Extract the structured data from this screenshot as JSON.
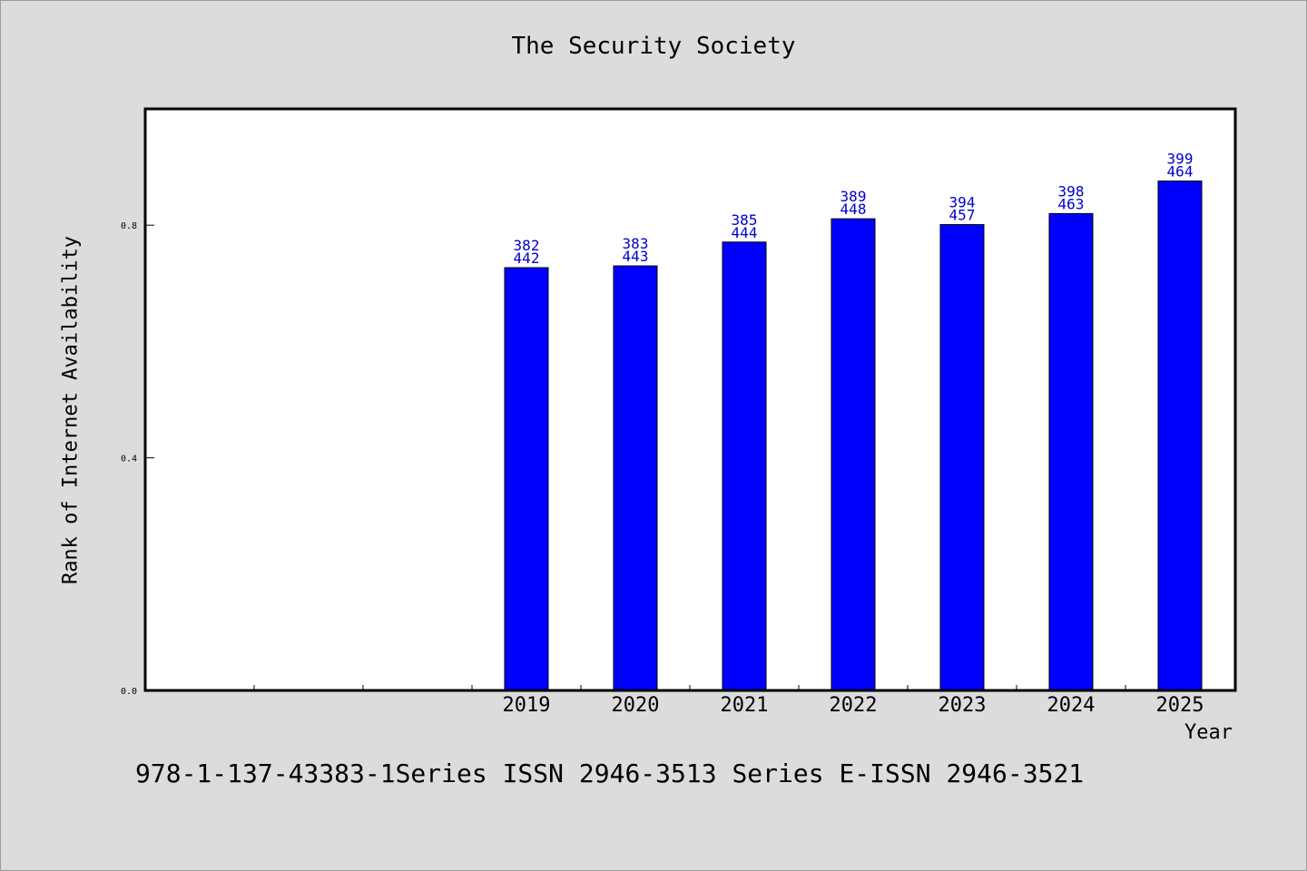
{
  "chart_data": {
    "type": "bar",
    "title": "The Security Society",
    "xlabel": "Year",
    "ylabel": "Rank of Internet Availability",
    "categories": [
      "",
      "",
      "",
      "2019",
      "2020",
      "2021",
      "2022",
      "2023",
      "2024",
      "2025"
    ],
    "values": [
      null,
      null,
      null,
      0.727,
      0.73,
      0.771,
      0.811,
      0.801,
      0.82,
      0.876
    ],
    "data_labels": [
      null,
      null,
      null,
      [
        "382",
        "442"
      ],
      [
        "383",
        "443"
      ],
      [
        "385",
        "444"
      ],
      [
        "389",
        "448"
      ],
      [
        "394",
        "457"
      ],
      [
        "398",
        "463"
      ],
      [
        "399",
        "464"
      ]
    ],
    "yticks": [
      "0.0",
      "0.4",
      "0.8"
    ],
    "ytick_values": [
      0.0,
      0.4,
      0.8
    ],
    "ylim": [
      0,
      1.0
    ],
    "grid": false,
    "legend": "none",
    "colors": {
      "bar": "#0000ff",
      "bar_edge": "#000000",
      "data_label": "#0000cc",
      "plot_bg": "#ffffff",
      "page_bg": "#dcdcdc"
    }
  },
  "footer": "978-1-137-43383-1Series ISSN 2946-3513 Series E-ISSN 2946-3521"
}
